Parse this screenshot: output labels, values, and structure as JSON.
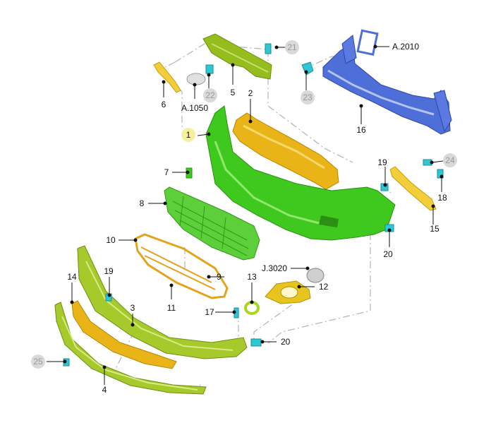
{
  "colors": {
    "bumper_green": "#3fc81e",
    "frame_green": "#95bd1d",
    "trim_yellow": "#e8b418",
    "beam_blue": "#4f6fd8",
    "clip_cyan": "#2fc7d2",
    "grey_badge": "#d9d9d9",
    "highlight_badge": "#f4f0a0"
  },
  "callouts": {
    "c1": "1",
    "c2": "2",
    "c3": "3",
    "c4": "4",
    "c5": "5",
    "c6": "6",
    "c7": "7",
    "c8": "8",
    "c9": "9",
    "c10": "10",
    "c11": "11",
    "c12": "12",
    "c13": "13",
    "c14": "14",
    "c15": "15",
    "c16": "16",
    "c17": "17",
    "c18": "18",
    "c19a": "19",
    "c19b": "19",
    "c20a": "20",
    "c20b": "20",
    "c21": "21",
    "c22": "22",
    "c23": "23",
    "c24": "24",
    "c25": "25",
    "a1050": "A.1050",
    "a2010": "A.2010",
    "j3020": "J.3020"
  }
}
